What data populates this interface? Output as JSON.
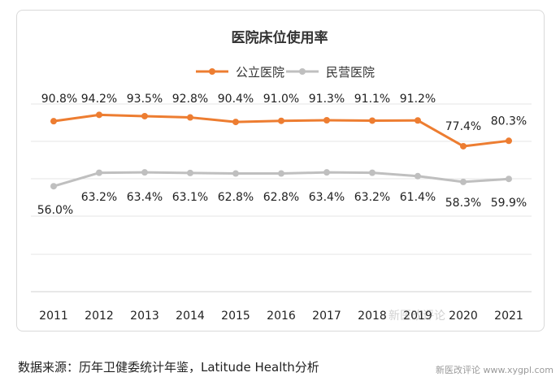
{
  "chart_data": {
    "type": "line",
    "title": "医院床位使用率",
    "categories": [
      "2011",
      "2012",
      "2013",
      "2014",
      "2015",
      "2016",
      "2017",
      "2018",
      "2019",
      "2020",
      "2021"
    ],
    "series": [
      {
        "name": "公立医院",
        "color": "#ED7D31",
        "values": [
          90.8,
          94.2,
          93.5,
          92.8,
          90.4,
          91.0,
          91.3,
          91.1,
          91.2,
          77.4,
          80.3
        ],
        "labels": [
          "90.8%",
          "94.2%",
          "93.5%",
          "92.8%",
          "90.4%",
          "91.0%",
          "91.3%",
          "91.1%",
          "91.2%",
          "77.4%",
          "80.3%"
        ]
      },
      {
        "name": "民营医院",
        "color": "#BFBFBF",
        "values": [
          56.0,
          63.2,
          63.4,
          63.1,
          62.8,
          62.8,
          63.4,
          63.2,
          61.4,
          58.3,
          59.9
        ],
        "labels": [
          "56.0%",
          "63.2%",
          "63.4%",
          "63.1%",
          "62.8%",
          "62.8%",
          "63.4%",
          "63.2%",
          "61.4%",
          "58.3%",
          "59.9%"
        ]
      }
    ],
    "legend_position": "top-center",
    "grid": true,
    "y_axis_visible": false
  },
  "source_note": "数据来源：历年卫健委统计年鉴，Latitude Health分析",
  "watermark": "新医改评论",
  "site_watermark": "新医改评论 www.xygpl.com"
}
